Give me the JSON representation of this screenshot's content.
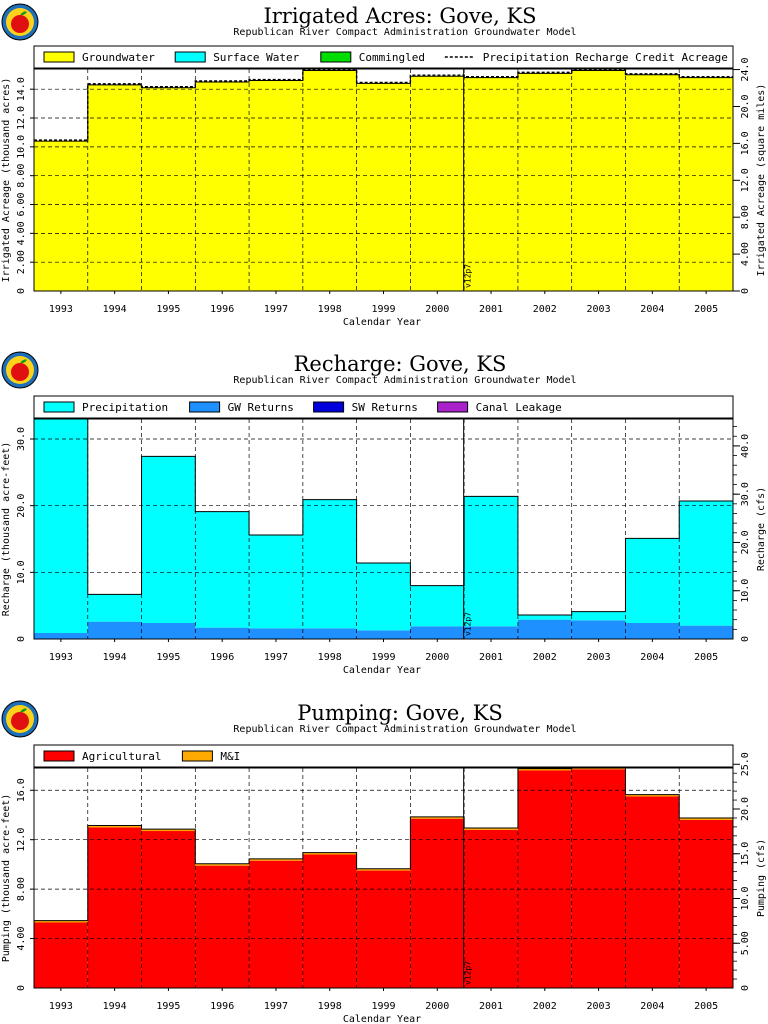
{
  "colors": {
    "groundwater": "#ffff00",
    "surface_water": "#00ffff",
    "commingled": "#00dd00",
    "precipitation": "#00ffff",
    "gw_returns": "#1e90ff",
    "sw_returns": "#0000dd",
    "canal_leakage": "#aa22cc",
    "agricultural": "#ff0000",
    "mi": "#ffaa00"
  },
  "logo": {
    "icon": "apple-logo-icon"
  },
  "chart_data": [
    {
      "type": "area",
      "title": "Irrigated Acres: Gove, KS",
      "subtitle": "Republican River Compact Administration Groundwater Model",
      "xlabel": "Calendar Year",
      "ylabel": "Irrigated Acreage (thousand acres)",
      "ylabel_right": "Irrigated Acreage (square miles)",
      "categories": [
        "1993",
        "1994",
        "1995",
        "1996",
        "1997",
        "1998",
        "1999",
        "2000",
        "2001",
        "2002",
        "2003",
        "2004",
        "2005"
      ],
      "ylim": [
        0,
        15.4
      ],
      "yticks": [
        2,
        4,
        6,
        8,
        10,
        12,
        14
      ],
      "yticklabels": [
        "2.00",
        "4.00",
        "6.00",
        "8.00",
        "10.0",
        "12.0",
        "14.0"
      ],
      "y2ticks": [
        0,
        4,
        8,
        12,
        16,
        20,
        24
      ],
      "y2ticklabels": [
        "0",
        "4.00",
        "8.00",
        "12.0",
        "16.0",
        "20.0",
        "24.0"
      ],
      "y2_factor": 1.5625,
      "legend": [
        "Groundwater",
        "Surface Water",
        "Commingled",
        "Precipitation Recharge Credit Acreage"
      ],
      "series": [
        {
          "name": "Groundwater",
          "color_key": "groundwater",
          "values": [
            10.4,
            14.3,
            14.1,
            14.5,
            14.6,
            15.3,
            14.4,
            14.9,
            14.8,
            15.1,
            15.3,
            15.0,
            14.8
          ]
        },
        {
          "name": "Surface Water",
          "color_key": "surface_water",
          "values": [
            0,
            0,
            0,
            0,
            0,
            0,
            0,
            0,
            0,
            0,
            0,
            0,
            0
          ]
        },
        {
          "name": "Commingled",
          "color_key": "commingled",
          "values": [
            0,
            0,
            0,
            0,
            0,
            0,
            0,
            0,
            0,
            0,
            0,
            0,
            0
          ]
        }
      ],
      "line": {
        "name": "Precipitation Recharge Credit Acreage",
        "values": [
          10.4,
          14.3,
          14.1,
          14.5,
          14.6,
          15.3,
          14.4,
          14.9,
          14.8,
          15.1,
          15.3,
          15.0,
          14.8
        ]
      },
      "marker": {
        "label": "v12p7",
        "year_index": 8
      },
      "grid": true
    },
    {
      "type": "area",
      "title": "Recharge: Gove, KS",
      "subtitle": "Republican River Compact Administration Groundwater Model",
      "xlabel": "Calendar Year",
      "ylabel": "Recharge (thousand acre-feet)",
      "ylabel_right": "Recharge (cfs)",
      "categories": [
        "1993",
        "1994",
        "1995",
        "1996",
        "1997",
        "1998",
        "1999",
        "2000",
        "2001",
        "2002",
        "2003",
        "2004",
        "2005"
      ],
      "ylim": [
        0,
        33
      ],
      "yticks": [
        10,
        20,
        30
      ],
      "yticklabels": [
        "10.0",
        "20.0",
        "30.0"
      ],
      "y2ticks": [
        10,
        20,
        30,
        40
      ],
      "y2ticklabels": [
        "10.0",
        "20.0",
        "30.0",
        "40.0"
      ],
      "y2minor": 2,
      "y2_factor": 1.381,
      "legend": [
        "Precipitation",
        "GW Returns",
        "SW Returns",
        "Canal Leakage"
      ],
      "series": [
        {
          "name": "GW Returns",
          "color_key": "gw_returns",
          "values": [
            0.9,
            2.6,
            2.4,
            1.7,
            1.6,
            1.6,
            1.3,
            1.9,
            1.9,
            2.9,
            2.8,
            2.4,
            2.0
          ]
        },
        {
          "name": "Precipitation",
          "color_key": "precipitation",
          "values": [
            32.1,
            4.1,
            25.0,
            17.4,
            14.0,
            19.3,
            10.1,
            6.1,
            19.5,
            0.7,
            1.3,
            12.7,
            18.7
          ]
        },
        {
          "name": "SW Returns",
          "color_key": "sw_returns",
          "values": [
            0,
            0,
            0,
            0,
            0,
            0,
            0,
            0,
            0,
            0,
            0,
            0,
            0
          ]
        },
        {
          "name": "Canal Leakage",
          "color_key": "canal_leakage",
          "values": [
            0,
            0,
            0,
            0,
            0,
            0,
            0,
            0,
            0,
            0,
            0,
            0,
            0
          ]
        }
      ],
      "marker": {
        "label": "v12p7",
        "year_index": 8
      },
      "grid": true
    },
    {
      "type": "area",
      "title": "Pumping: Gove, KS",
      "subtitle": "Republican River Compact Administration Groundwater Model",
      "xlabel": "Calendar Year",
      "ylabel": "Pumping (thousand acre-feet)",
      "ylabel_right": "Pumping (cfs)",
      "categories": [
        "1993",
        "1994",
        "1995",
        "1996",
        "1997",
        "1998",
        "1999",
        "2000",
        "2001",
        "2002",
        "2003",
        "2004",
        "2005"
      ],
      "ylim": [
        0,
        17.8
      ],
      "yticks": [
        4,
        8,
        12,
        16
      ],
      "yticklabels": [
        "4.00",
        "8.00",
        "12.0",
        "16.0"
      ],
      "y2ticks": [
        5,
        10,
        15,
        20,
        25
      ],
      "y2ticklabels": [
        "5.00",
        "10.0",
        "15.0",
        "20.0",
        "25.0"
      ],
      "y2minor": 1,
      "y2_factor": 1.381,
      "legend": [
        "Agricultural",
        "M&I"
      ],
      "series": [
        {
          "name": "Agricultural",
          "color_key": "agricultural",
          "values": [
            5.3,
            13.0,
            12.7,
            9.9,
            10.3,
            10.8,
            9.5,
            13.7,
            12.8,
            17.6,
            17.7,
            15.5,
            13.6
          ]
        },
        {
          "name": "M&I",
          "color_key": "mi",
          "values": [
            0.15,
            0.15,
            0.15,
            0.15,
            0.15,
            0.15,
            0.15,
            0.15,
            0.15,
            0.15,
            0.15,
            0.15,
            0.15
          ]
        }
      ],
      "marker": {
        "label": "v12p7",
        "year_index": 8
      },
      "grid": true
    }
  ]
}
